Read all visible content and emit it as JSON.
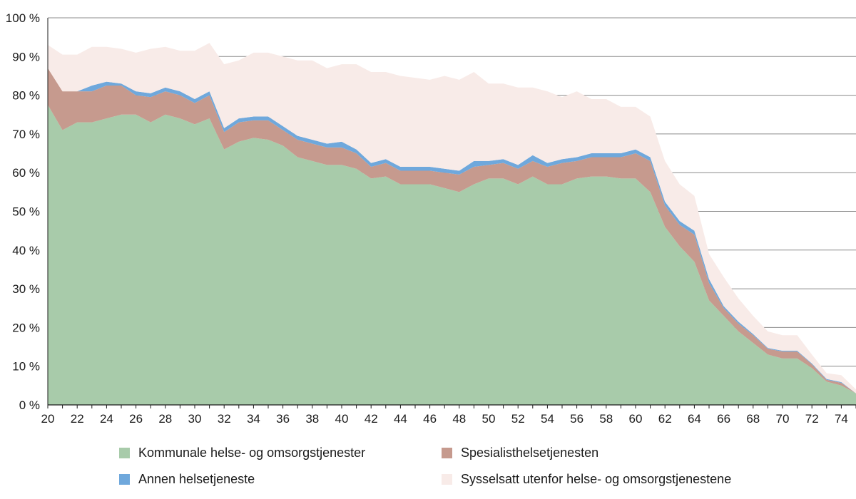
{
  "chart_data": {
    "type": "area",
    "stacked": true,
    "title": "",
    "xlabel": "",
    "ylabel": "",
    "x": [
      20,
      21,
      22,
      23,
      24,
      25,
      26,
      27,
      28,
      29,
      30,
      31,
      32,
      33,
      34,
      35,
      36,
      37,
      38,
      39,
      40,
      41,
      42,
      43,
      44,
      45,
      46,
      47,
      48,
      49,
      50,
      51,
      52,
      53,
      54,
      55,
      56,
      57,
      58,
      59,
      60,
      61,
      62,
      63,
      64,
      65,
      66,
      67,
      68,
      69,
      70,
      71,
      72,
      73,
      74,
      75
    ],
    "x_tick_labels": [
      "20",
      "22",
      "24",
      "26",
      "28",
      "30",
      "32",
      "34",
      "36",
      "38",
      "40",
      "42",
      "44",
      "46",
      "48",
      "50",
      "52",
      "54",
      "56",
      "58",
      "60",
      "62",
      "64",
      "66",
      "68",
      "70",
      "72",
      "74"
    ],
    "xlim": [
      20,
      75
    ],
    "ylim": [
      0,
      100
    ],
    "y_ticks": [
      0,
      10,
      20,
      30,
      40,
      50,
      60,
      70,
      80,
      90,
      100
    ],
    "y_tick_labels": [
      "0 %",
      "10 %",
      "20 %",
      "30 %",
      "40 %",
      "50 %",
      "60 %",
      "70 %",
      "80 %",
      "90 %",
      "100 %"
    ],
    "grid": "horizontal",
    "legend_position": "bottom",
    "series": [
      {
        "name": "Kommunale helse- og omsorgstjenester",
        "color": "#a8cbaa",
        "values": [
          77.5,
          71,
          73,
          73,
          74,
          75,
          75,
          73,
          75,
          74,
          72.5,
          74,
          66,
          68,
          69,
          68.5,
          67,
          64,
          63,
          62,
          62,
          61,
          58.5,
          59,
          57,
          57,
          57,
          56,
          55,
          57,
          58.5,
          58.5,
          57,
          59,
          57,
          57,
          58.5,
          59,
          59,
          58.5,
          58.5,
          55,
          46,
          41,
          37,
          27,
          23,
          19,
          16,
          13,
          12,
          12,
          9.5,
          6,
          5,
          3
        ]
      },
      {
        "name": "Spesialisthelsetjenesten",
        "color": "#c69a8e",
        "values": [
          9.5,
          10,
          8,
          8,
          8.5,
          7.5,
          5,
          6.5,
          6,
          6,
          5.5,
          6,
          4.5,
          5,
          4.5,
          5,
          4,
          4.5,
          4.5,
          4.5,
          4.5,
          4,
          3,
          3.5,
          3.5,
          3.5,
          3.5,
          4,
          4.5,
          4.5,
          3.5,
          4,
          4,
          4,
          4.5,
          5.5,
          4.5,
          5,
          5,
          5.5,
          6.5,
          8,
          5.5,
          5.5,
          7,
          4.5,
          2,
          2,
          2,
          1.5,
          1.8,
          1.8,
          1,
          0.5,
          0.7,
          0
        ]
      },
      {
        "name": "Annen helsetjeneste",
        "color": "#6fa8dc",
        "values": [
          0,
          0,
          0,
          1.5,
          1,
          0.5,
          1,
          1,
          1,
          1,
          1,
          1,
          1,
          1,
          1,
          1,
          1,
          1,
          1,
          1,
          1.5,
          1,
          1,
          1,
          1,
          1,
          1,
          1,
          1,
          1.5,
          1,
          1,
          1,
          1.5,
          1,
          1,
          1,
          1,
          1,
          1,
          1,
          1,
          1,
          1,
          1,
          1,
          0.5,
          0.5,
          0.3,
          0.2,
          0.2,
          0.2,
          0.2,
          0.2,
          0.2,
          0
        ]
      },
      {
        "name": "Sysselsatt utenfor helse- og omsorgstjenestene",
        "color": "#f8ebe8",
        "values": [
          6,
          9.5,
          9.5,
          10,
          9,
          9,
          10,
          11.5,
          10.5,
          10.5,
          12.5,
          12.5,
          16.5,
          15,
          16.5,
          16.5,
          18,
          19.5,
          20.5,
          19.5,
          20,
          22,
          23.5,
          22.5,
          23.5,
          23,
          22.5,
          24,
          23.5,
          23,
          20,
          19.5,
          20,
          17.5,
          18.5,
          16,
          17,
          14,
          14,
          12,
          11,
          10.5,
          10.5,
          9.5,
          9,
          6.5,
          7.5,
          6,
          4.7,
          4.3,
          4,
          4,
          2.3,
          1.5,
          1.8,
          1
        ]
      }
    ]
  }
}
